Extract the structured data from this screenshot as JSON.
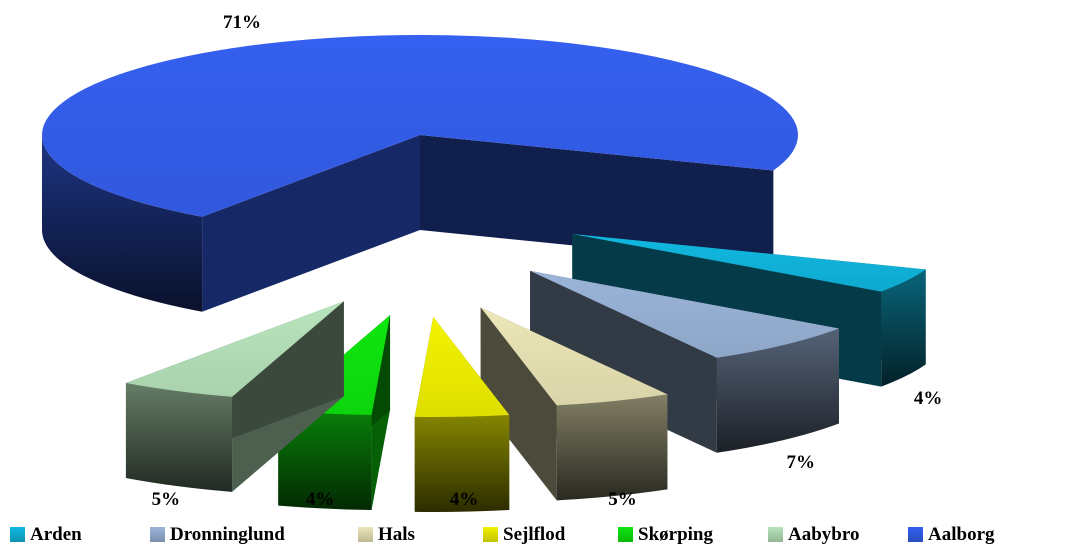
{
  "chart_data": {
    "type": "pie",
    "title": "",
    "style": "3d-exploded",
    "legend_position": "bottom",
    "slices": [
      {
        "label": "Arden",
        "value": 4,
        "display": "4%",
        "color": "#10b8e0"
      },
      {
        "label": "Dronninglund",
        "value": 7,
        "display": "7%",
        "color": "#9ab4d8"
      },
      {
        "label": "Hals",
        "value": 5,
        "display": "5%",
        "color": "#ece6b8"
      },
      {
        "label": "Sejlflod",
        "value": 4,
        "display": "4%",
        "color": "#f2f200"
      },
      {
        "label": "Skørping",
        "value": 4,
        "display": "4%",
        "color": "#0ee60e"
      },
      {
        "label": "Aabybro",
        "value": 5,
        "display": "5%",
        "color": "#b8e4bc"
      },
      {
        "label": "Aalborg",
        "value": 71,
        "display": "71%",
        "color": "#3560f0"
      }
    ]
  }
}
